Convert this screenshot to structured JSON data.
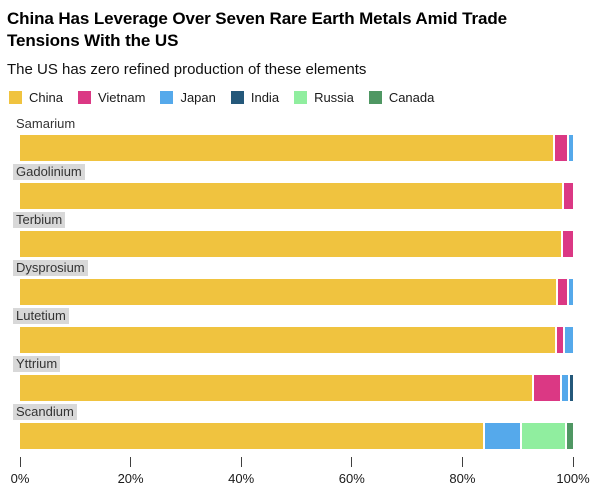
{
  "header": {
    "title_lines": [
      "China Has Leverage Over Seven Rare Earth Metals Amid Trade",
      "Tensions With the US"
    ],
    "subtitle": "The US has zero refined production of these elements"
  },
  "chart_data": {
    "type": "bar",
    "orientation": "horizontal-stacked",
    "title": "China Has Leverage Over Seven Rare Earth Metals Amid Trade Tensions With the US",
    "subtitle": "The US has zero refined production of these elements",
    "xlim": [
      0,
      100
    ],
    "grid": false,
    "legend_position": "top",
    "legend": [
      {
        "label": "China",
        "color": "#F0C33F"
      },
      {
        "label": "Vietnam",
        "color": "#DB3884"
      },
      {
        "label": "Japan",
        "color": "#55A9EB"
      },
      {
        "label": "India",
        "color": "#24587A"
      },
      {
        "label": "Russia",
        "color": "#90EE9F"
      },
      {
        "label": "Canada",
        "color": "#4F9763"
      }
    ],
    "x_ticks": [
      {
        "label": "0%",
        "pct": 0
      },
      {
        "label": "20%",
        "pct": 20
      },
      {
        "label": "40%",
        "pct": 40
      },
      {
        "label": "60%",
        "pct": 60
      },
      {
        "label": "80%",
        "pct": 80
      },
      {
        "label": "100%",
        "pct": 100
      }
    ],
    "rows": [
      {
        "label": "Samarium",
        "highlight": false,
        "segments": [
          {
            "country": "China",
            "pct": 97.0
          },
          {
            "country": "Vietnam",
            "pct": 2.3
          },
          {
            "country": "Japan",
            "pct": 0.7
          }
        ]
      },
      {
        "label": "Gadolinium",
        "highlight": true,
        "segments": [
          {
            "country": "China",
            "pct": 98.4
          },
          {
            "country": "Vietnam",
            "pct": 1.6
          }
        ]
      },
      {
        "label": "Terbium",
        "highlight": true,
        "segments": [
          {
            "country": "China",
            "pct": 98.2
          },
          {
            "country": "Vietnam",
            "pct": 1.8
          }
        ]
      },
      {
        "label": "Dysprosium",
        "highlight": true,
        "segments": [
          {
            "country": "China",
            "pct": 97.7
          },
          {
            "country": "Vietnam",
            "pct": 1.6
          },
          {
            "country": "Japan",
            "pct": 0.7
          }
        ]
      },
      {
        "label": "Lutetium",
        "highlight": true,
        "segments": [
          {
            "country": "China",
            "pct": 97.5
          },
          {
            "country": "Vietnam",
            "pct": 1.0
          },
          {
            "country": "Japan",
            "pct": 1.5
          }
        ]
      },
      {
        "label": "Yttrium",
        "highlight": true,
        "segments": [
          {
            "country": "China",
            "pct": 93.6
          },
          {
            "country": "Vietnam",
            "pct": 4.7
          },
          {
            "country": "Japan",
            "pct": 1.1
          },
          {
            "country": "India",
            "pct": 0.6
          }
        ]
      },
      {
        "label": "Scandium",
        "highlight": true,
        "segments": [
          {
            "country": "China",
            "pct": 84.6
          },
          {
            "country": "Japan",
            "pct": 6.5
          },
          {
            "country": "Russia",
            "pct": 7.8
          },
          {
            "country": "Canada",
            "pct": 1.1
          }
        ]
      }
    ]
  }
}
